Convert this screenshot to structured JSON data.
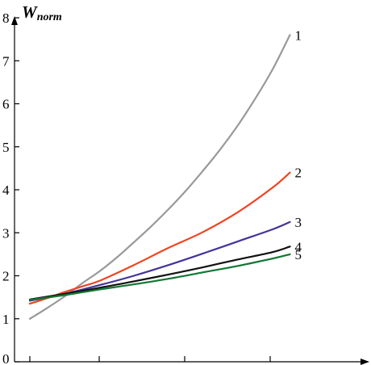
{
  "chart_data": {
    "type": "line",
    "title": "",
    "xlabel": "",
    "ylabel": "W",
    "ylabel_subscript": "norm",
    "ylim": [
      0,
      8
    ],
    "yticks": [
      0,
      1,
      2,
      3,
      4,
      5,
      6,
      7,
      8
    ],
    "xlim": [
      0,
      4
    ],
    "x_tick_positions": [
      0,
      1,
      2,
      3
    ],
    "x_tick_labels": [
      "",
      "",
      "",
      ""
    ],
    "grid": false,
    "series": [
      {
        "name": "1",
        "color": "#999999",
        "x": [
          0,
          0.25,
          0.5,
          0.75,
          1.0,
          1.25,
          1.5,
          1.75,
          2.0,
          2.25,
          2.5,
          2.75,
          3.0,
          3.25,
          3.5,
          3.75
        ],
        "y": [
          1.0,
          1.25,
          1.52,
          1.82,
          2.1,
          2.42,
          2.78,
          3.15,
          3.55,
          3.98,
          4.45,
          4.95,
          5.5,
          6.12,
          6.8,
          7.6
        ]
      },
      {
        "name": "2",
        "color": "#ee4422",
        "x": [
          0,
          0.25,
          0.5,
          0.75,
          1.0,
          1.5,
          2.0,
          2.5,
          3.0,
          3.5,
          3.75
        ],
        "y": [
          1.35,
          1.48,
          1.62,
          1.75,
          1.88,
          2.25,
          2.65,
          3.02,
          3.48,
          4.05,
          4.4
        ]
      },
      {
        "name": "3",
        "color": "#443399",
        "x": [
          0,
          0.5,
          1.0,
          1.5,
          2.0,
          2.5,
          3.0,
          3.5,
          3.75
        ],
        "y": [
          1.42,
          1.58,
          1.78,
          2.0,
          2.25,
          2.52,
          2.8,
          3.08,
          3.25
        ]
      },
      {
        "name": "4",
        "color": "#111111",
        "x": [
          0,
          0.5,
          1.0,
          1.5,
          2.0,
          2.5,
          3.0,
          3.5,
          3.75
        ],
        "y": [
          1.45,
          1.58,
          1.72,
          1.87,
          2.03,
          2.2,
          2.38,
          2.55,
          2.68
        ]
      },
      {
        "name": "5",
        "color": "#117733",
        "x": [
          0,
          0.5,
          1.0,
          1.5,
          2.0,
          2.5,
          3.0,
          3.5,
          3.75
        ],
        "y": [
          1.44,
          1.55,
          1.68,
          1.8,
          1.93,
          2.08,
          2.23,
          2.4,
          2.5
        ]
      }
    ]
  }
}
